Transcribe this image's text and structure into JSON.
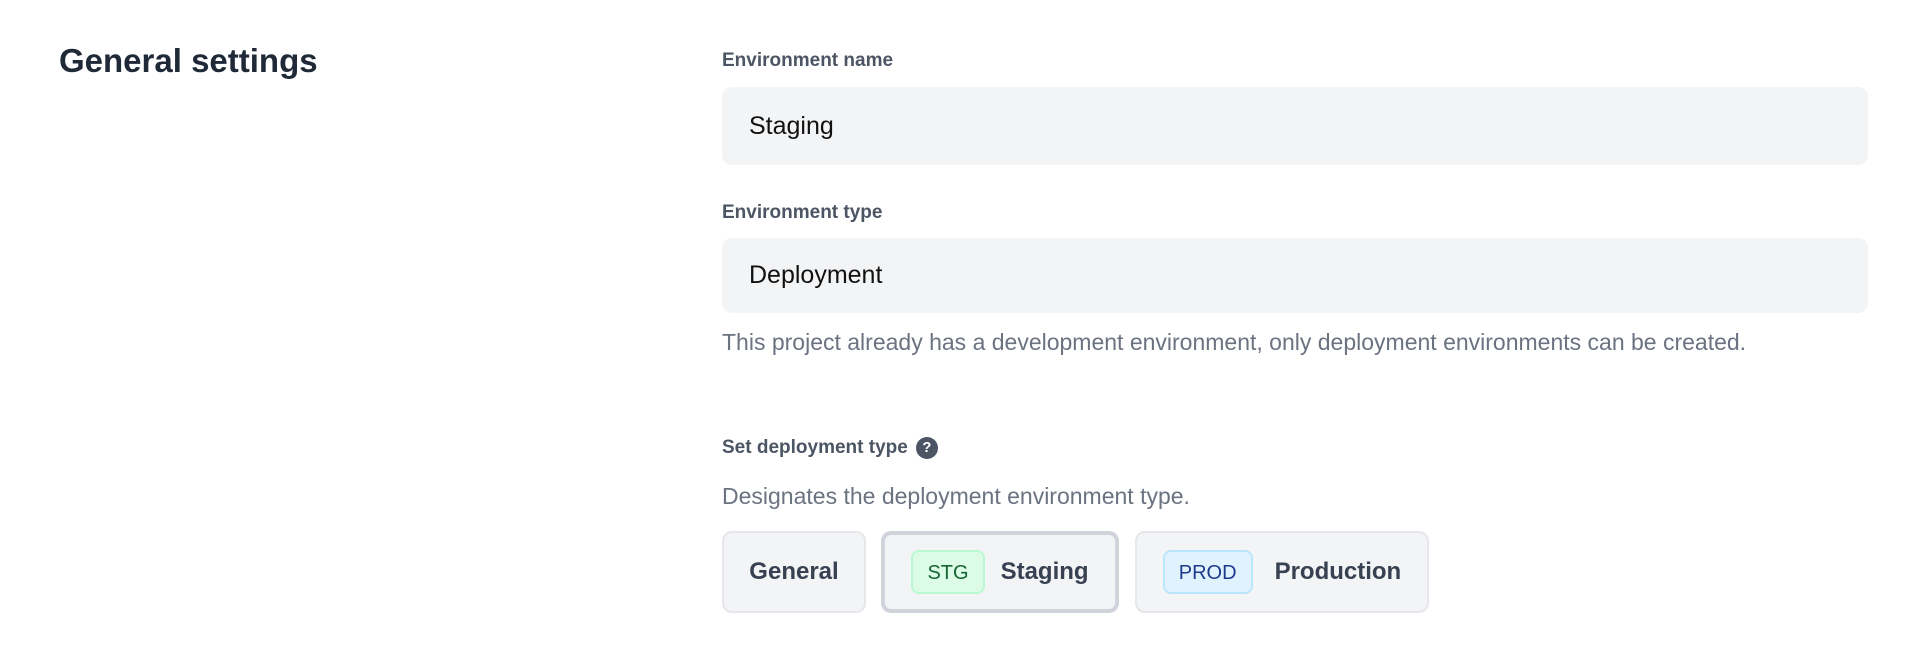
{
  "section_title": "General settings",
  "env_name": {
    "label": "Environment name",
    "value": "Staging"
  },
  "env_type": {
    "label": "Environment type",
    "value": "Deployment",
    "help": "This project already has a development environment, only deployment environments can be created."
  },
  "deployment_type": {
    "label": "Set deployment type",
    "help_icon": "question-circle-icon",
    "description": "Designates the deployment environment type.",
    "selected": "Staging",
    "options": [
      {
        "label": "General"
      },
      {
        "label": "Staging",
        "badge": "STG",
        "badge_bg": "#dcfce7",
        "badge_border": "#bbf7d0",
        "badge_color": "#166534"
      },
      {
        "label": "Production",
        "badge": "PROD",
        "badge_bg": "#e0f2fe",
        "badge_border": "#bae6fd",
        "badge_color": "#1e3a8a"
      }
    ]
  }
}
